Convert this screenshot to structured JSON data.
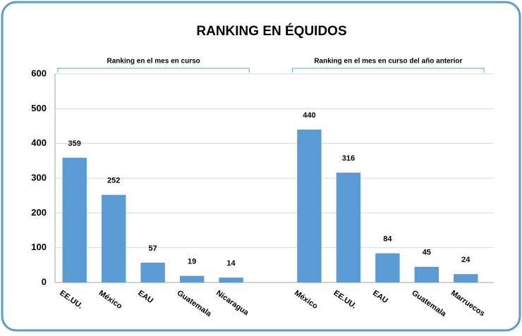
{
  "chart_data": {
    "type": "bar",
    "title": "RANKING EN ÉQUIDOS",
    "annotations": [
      "Ranking en el mes en curso",
      "Ranking en el mes en curso del año anterior"
    ],
    "categories": [
      "EE.UU.",
      "México",
      "EAU",
      "Guatemala",
      "Nicaragua",
      null,
      "México",
      "EE.UU.",
      "EAU",
      "Guatemala",
      "Marruecos"
    ],
    "values": [
      359,
      252,
      57,
      19,
      14,
      null,
      440,
      316,
      84,
      45,
      24
    ],
    "color": "#5b9bd5",
    "ylim": [
      0,
      600
    ],
    "yticks": [
      0,
      100,
      200,
      300,
      400,
      500,
      600
    ],
    "grid": true
  }
}
